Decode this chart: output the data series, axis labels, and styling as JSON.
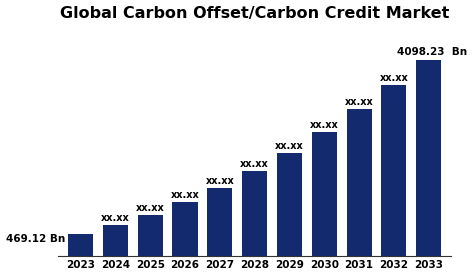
{
  "title": "Global Carbon Offset/Carbon Credit Market",
  "years": [
    2023,
    2024,
    2025,
    2026,
    2027,
    2028,
    2029,
    2030,
    2031,
    2032,
    2033
  ],
  "values": [
    469.12,
    650,
    870,
    1130,
    1430,
    1770,
    2150,
    2590,
    3070,
    3570,
    4098.23
  ],
  "bar_color": "#132b6e",
  "label_2023": "469.12 Bn",
  "label_2033": "4098.23  Bn",
  "label_middle": "xx.xx",
  "background_color": "#ffffff",
  "title_fontsize": 11.5,
  "label_fontsize": 7.5,
  "tick_fontsize": 7.5,
  "ylim": [
    0,
    4800
  ]
}
